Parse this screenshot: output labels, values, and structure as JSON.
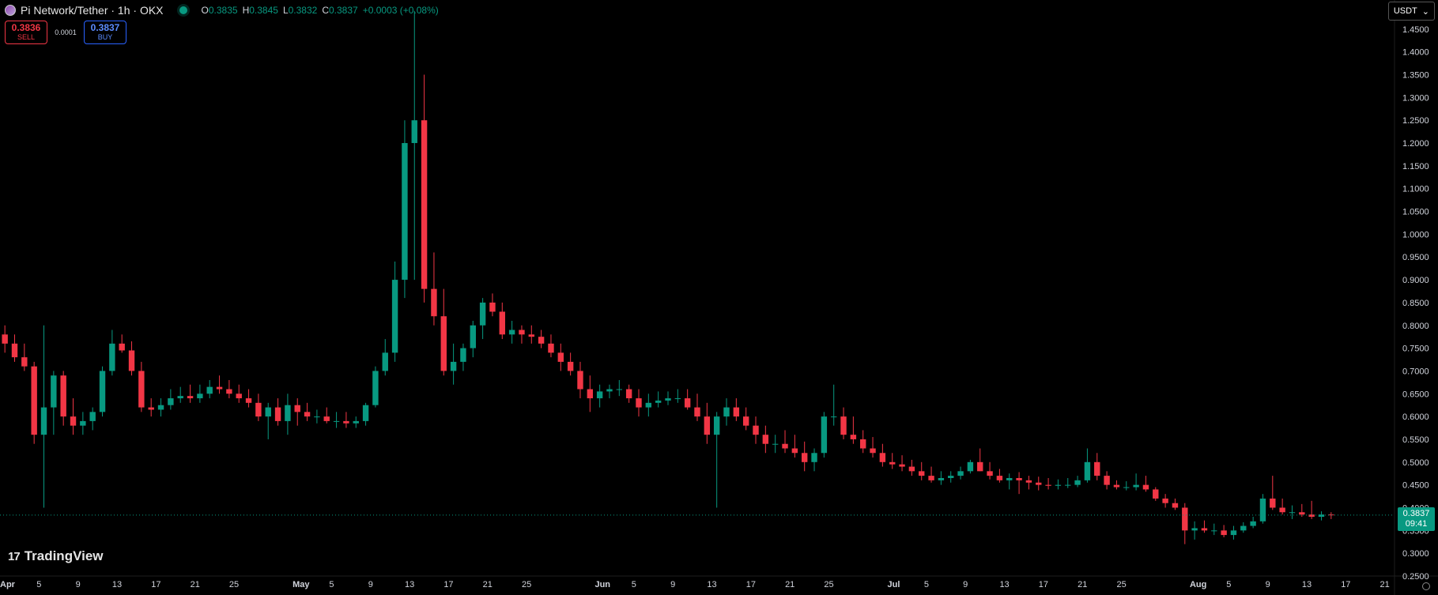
{
  "header": {
    "symbol_title": "Pi Network/Tether · 1h · OKX",
    "ohlc": {
      "o_key": "O",
      "o_val": "0.3835",
      "h_key": "H",
      "h_val": "0.3845",
      "l_key": "L",
      "l_val": "0.3832",
      "c_key": "C",
      "c_val": "0.3837",
      "change": "+0.0003 (+0.08%)"
    }
  },
  "trade": {
    "sell_price": "0.3836",
    "sell_label": "SELL",
    "spread": "0.0001",
    "buy_price": "0.3837",
    "buy_label": "BUY"
  },
  "currency_selector": {
    "label": "USDT",
    "chevron": "⌄"
  },
  "logo": {
    "mark": "17",
    "text": "TradingView"
  },
  "price_label": {
    "price": "0.3837",
    "countdown": "09:41"
  },
  "colors": {
    "up": "#089981",
    "down": "#f23645",
    "background": "#000000",
    "axis_text": "#d1d4dc"
  },
  "chart_data": {
    "type": "line",
    "chart_style": "candlestick",
    "y_scale": "linear",
    "ylim": [
      0.25,
      1.5
    ],
    "y_ticks": [
      "0.2500",
      "0.3000",
      "0.3500",
      "0.4000",
      "0.4500",
      "0.5000",
      "0.5500",
      "0.6000",
      "0.6500",
      "0.7000",
      "0.7500",
      "0.8000",
      "0.8500",
      "0.9000",
      "0.9500",
      "1.0000",
      "1.0500",
      "1.1000",
      "1.1500",
      "1.2000",
      "1.2500",
      "1.3000",
      "1.3500",
      "1.4000",
      "1.4500"
    ],
    "x_axis": {
      "start": "2025-04-01",
      "end": "2025-08-22",
      "ticks": [
        {
          "date": "2025-04-01",
          "label": "Apr"
        },
        {
          "date": "2025-04-05",
          "label": "5"
        },
        {
          "date": "2025-04-09",
          "label": "9"
        },
        {
          "date": "2025-04-13",
          "label": "13"
        },
        {
          "date": "2025-04-17",
          "label": "17"
        },
        {
          "date": "2025-04-21",
          "label": "21"
        },
        {
          "date": "2025-04-25",
          "label": "25"
        },
        {
          "date": "2025-05-01",
          "label": "May"
        },
        {
          "date": "2025-05-05",
          "label": "5"
        },
        {
          "date": "2025-05-09",
          "label": "9"
        },
        {
          "date": "2025-05-13",
          "label": "13"
        },
        {
          "date": "2025-05-17",
          "label": "17"
        },
        {
          "date": "2025-05-21",
          "label": "21"
        },
        {
          "date": "2025-05-25",
          "label": "25"
        },
        {
          "date": "2025-06-01",
          "label": "Jun"
        },
        {
          "date": "2025-06-05",
          "label": "5"
        },
        {
          "date": "2025-06-09",
          "label": "9"
        },
        {
          "date": "2025-06-13",
          "label": "13"
        },
        {
          "date": "2025-06-17",
          "label": "17"
        },
        {
          "date": "2025-06-21",
          "label": "21"
        },
        {
          "date": "2025-06-25",
          "label": "25"
        },
        {
          "date": "2025-07-01",
          "label": "Jul"
        },
        {
          "date": "2025-07-05",
          "label": "5"
        },
        {
          "date": "2025-07-09",
          "label": "9"
        },
        {
          "date": "2025-07-13",
          "label": "13"
        },
        {
          "date": "2025-07-17",
          "label": "17"
        },
        {
          "date": "2025-07-21",
          "label": "21"
        },
        {
          "date": "2025-07-25",
          "label": "25"
        },
        {
          "date": "2025-08-01",
          "label": "Aug"
        },
        {
          "date": "2025-08-05",
          "label": "5"
        },
        {
          "date": "2025-08-09",
          "label": "9"
        },
        {
          "date": "2025-08-13",
          "label": "13"
        },
        {
          "date": "2025-08-17",
          "label": "17"
        },
        {
          "date": "2025-08-21",
          "label": "21"
        }
      ]
    },
    "last_price": 0.3837,
    "series": [
      {
        "x": [
          "2025-04-01",
          "2025-04-02",
          "2025-04-03",
          "2025-04-04",
          "2025-04-05",
          "2025-04-06",
          "2025-04-07",
          "2025-04-08",
          "2025-04-09",
          "2025-04-10",
          "2025-04-11",
          "2025-04-12",
          "2025-04-13",
          "2025-04-14",
          "2025-04-15",
          "2025-04-16",
          "2025-04-17",
          "2025-04-18",
          "2025-04-19",
          "2025-04-20",
          "2025-04-21",
          "2025-04-22",
          "2025-04-23",
          "2025-04-24",
          "2025-04-25",
          "2025-04-26",
          "2025-04-27",
          "2025-04-28",
          "2025-04-29",
          "2025-04-30",
          "2025-05-01",
          "2025-05-02",
          "2025-05-03",
          "2025-05-04",
          "2025-05-05",
          "2025-05-06",
          "2025-05-07",
          "2025-05-08",
          "2025-05-09",
          "2025-05-10",
          "2025-05-11",
          "2025-05-12",
          "2025-05-13",
          "2025-05-14",
          "2025-05-15",
          "2025-05-16",
          "2025-05-17",
          "2025-05-18",
          "2025-05-19",
          "2025-05-20",
          "2025-05-21",
          "2025-05-22",
          "2025-05-23",
          "2025-05-24",
          "2025-05-25",
          "2025-05-26",
          "2025-05-27",
          "2025-05-28",
          "2025-05-29",
          "2025-05-30",
          "2025-05-31",
          "2025-06-01",
          "2025-06-02",
          "2025-06-03",
          "2025-06-04",
          "2025-06-05",
          "2025-06-06",
          "2025-06-07",
          "2025-06-08",
          "2025-06-09",
          "2025-06-10",
          "2025-06-11",
          "2025-06-12",
          "2025-06-13",
          "2025-06-14",
          "2025-06-15",
          "2025-06-16",
          "2025-06-17",
          "2025-06-18",
          "2025-06-19",
          "2025-06-20",
          "2025-06-21",
          "2025-06-22",
          "2025-06-23",
          "2025-06-24",
          "2025-06-25",
          "2025-06-26",
          "2025-06-27",
          "2025-06-28",
          "2025-06-29",
          "2025-06-30",
          "2025-07-01",
          "2025-07-02",
          "2025-07-03",
          "2025-07-04",
          "2025-07-05",
          "2025-07-06",
          "2025-07-07",
          "2025-07-08",
          "2025-07-09",
          "2025-07-10",
          "2025-07-11",
          "2025-07-12",
          "2025-07-13",
          "2025-07-14",
          "2025-07-15",
          "2025-07-16",
          "2025-07-17",
          "2025-07-18",
          "2025-07-19",
          "2025-07-20",
          "2025-07-21",
          "2025-07-22",
          "2025-07-23",
          "2025-07-24",
          "2025-07-25",
          "2025-07-26",
          "2025-07-27",
          "2025-07-28",
          "2025-07-29",
          "2025-07-30",
          "2025-07-31",
          "2025-08-01",
          "2025-08-02",
          "2025-08-03",
          "2025-08-04",
          "2025-08-05",
          "2025-08-06",
          "2025-08-07",
          "2025-08-08",
          "2025-08-09",
          "2025-08-10",
          "2025-08-11",
          "2025-08-12",
          "2025-08-13",
          "2025-08-14",
          "2025-08-15"
        ],
        "o": [
          0.78,
          0.76,
          0.73,
          0.71,
          0.56,
          0.62,
          0.69,
          0.6,
          0.58,
          0.59,
          0.61,
          0.7,
          0.76,
          0.745,
          0.7,
          0.62,
          0.615,
          0.625,
          0.64,
          0.645,
          0.64,
          0.65,
          0.665,
          0.66,
          0.65,
          0.64,
          0.63,
          0.6,
          0.62,
          0.59,
          0.625,
          0.61,
          0.6,
          0.6,
          0.59,
          0.59,
          0.585,
          0.59,
          0.625,
          0.7,
          0.74,
          0.9,
          1.2,
          1.25,
          0.88,
          0.82,
          0.7,
          0.72,
          0.75,
          0.8,
          0.85,
          0.83,
          0.78,
          0.79,
          0.78,
          0.775,
          0.76,
          0.74,
          0.72,
          0.7,
          0.66,
          0.64,
          0.655,
          0.66,
          0.66,
          0.64,
          0.62,
          0.63,
          0.635,
          0.64,
          0.64,
          0.62,
          0.6,
          0.56,
          0.6,
          0.62,
          0.6,
          0.58,
          0.56,
          0.54,
          0.54,
          0.53,
          0.52,
          0.5,
          0.52,
          0.6,
          0.6,
          0.56,
          0.55,
          0.53,
          0.52,
          0.5,
          0.495,
          0.49,
          0.48,
          0.47,
          0.46,
          0.465,
          0.47,
          0.48,
          0.5,
          0.48,
          0.47,
          0.46,
          0.465,
          0.46,
          0.455,
          0.45,
          0.448,
          0.45,
          0.45,
          0.46,
          0.5,
          0.47,
          0.45,
          0.445,
          0.445,
          0.45,
          0.44,
          0.42,
          0.41,
          0.4,
          0.35,
          0.355,
          0.35,
          0.35,
          0.34,
          0.35,
          0.36,
          0.37,
          0.42,
          0.4,
          0.39,
          0.39,
          0.385,
          0.38,
          0.385
        ],
        "h": [
          0.8,
          0.78,
          0.76,
          0.72,
          0.8,
          0.7,
          0.7,
          0.64,
          0.61,
          0.62,
          0.71,
          0.79,
          0.78,
          0.765,
          0.72,
          0.64,
          0.64,
          0.66,
          0.665,
          0.67,
          0.67,
          0.68,
          0.69,
          0.68,
          0.67,
          0.66,
          0.65,
          0.63,
          0.64,
          0.65,
          0.64,
          0.63,
          0.615,
          0.62,
          0.61,
          0.61,
          0.6,
          0.63,
          0.71,
          0.77,
          0.94,
          1.25,
          1.49,
          1.35,
          0.96,
          0.88,
          0.76,
          0.76,
          0.81,
          0.86,
          0.87,
          0.85,
          0.81,
          0.8,
          0.8,
          0.79,
          0.78,
          0.76,
          0.74,
          0.72,
          0.69,
          0.67,
          0.67,
          0.68,
          0.67,
          0.66,
          0.65,
          0.655,
          0.655,
          0.66,
          0.66,
          0.65,
          0.63,
          0.61,
          0.64,
          0.64,
          0.62,
          0.6,
          0.58,
          0.56,
          0.57,
          0.56,
          0.545,
          0.53,
          0.61,
          0.67,
          0.62,
          0.6,
          0.57,
          0.555,
          0.54,
          0.52,
          0.515,
          0.505,
          0.5,
          0.49,
          0.48,
          0.48,
          0.49,
          0.505,
          0.53,
          0.5,
          0.485,
          0.475,
          0.478,
          0.47,
          0.468,
          0.465,
          0.462,
          0.465,
          0.47,
          0.53,
          0.52,
          0.48,
          0.46,
          0.458,
          0.475,
          0.47,
          0.445,
          0.43,
          0.42,
          0.41,
          0.37,
          0.372,
          0.365,
          0.362,
          0.36,
          0.368,
          0.38,
          0.43,
          0.47,
          0.42,
          0.405,
          0.408,
          0.415,
          0.392,
          0.39
        ],
        "l": [
          0.74,
          0.72,
          0.7,
          0.54,
          0.4,
          0.56,
          0.58,
          0.56,
          0.56,
          0.57,
          0.6,
          0.69,
          0.74,
          0.69,
          0.61,
          0.6,
          0.6,
          0.615,
          0.63,
          0.63,
          0.63,
          0.64,
          0.65,
          0.64,
          0.63,
          0.62,
          0.59,
          0.55,
          0.58,
          0.56,
          0.58,
          0.59,
          0.585,
          0.585,
          0.575,
          0.575,
          0.575,
          0.58,
          0.62,
          0.69,
          0.72,
          0.86,
          0.9,
          0.85,
          0.8,
          0.69,
          0.67,
          0.7,
          0.73,
          0.77,
          0.82,
          0.77,
          0.76,
          0.76,
          0.76,
          0.75,
          0.73,
          0.7,
          0.69,
          0.64,
          0.61,
          0.62,
          0.64,
          0.645,
          0.63,
          0.6,
          0.6,
          0.62,
          0.625,
          0.63,
          0.615,
          0.59,
          0.54,
          0.4,
          0.58,
          0.59,
          0.57,
          0.54,
          0.52,
          0.52,
          0.52,
          0.51,
          0.48,
          0.48,
          0.51,
          0.58,
          0.55,
          0.54,
          0.52,
          0.51,
          0.49,
          0.485,
          0.48,
          0.47,
          0.46,
          0.455,
          0.45,
          0.455,
          0.462,
          0.475,
          0.48,
          0.462,
          0.455,
          0.44,
          0.43,
          0.44,
          0.438,
          0.44,
          0.44,
          0.443,
          0.445,
          0.455,
          0.46,
          0.44,
          0.44,
          0.438,
          0.438,
          0.435,
          0.415,
          0.4,
          0.395,
          0.32,
          0.33,
          0.345,
          0.34,
          0.335,
          0.33,
          0.345,
          0.355,
          0.365,
          0.395,
          0.385,
          0.375,
          0.38,
          0.375,
          0.372,
          0.375
        ],
        "c": [
          0.76,
          0.73,
          0.71,
          0.56,
          0.62,
          0.69,
          0.6,
          0.58,
          0.59,
          0.61,
          0.7,
          0.76,
          0.745,
          0.7,
          0.62,
          0.615,
          0.625,
          0.64,
          0.645,
          0.64,
          0.65,
          0.665,
          0.66,
          0.65,
          0.64,
          0.63,
          0.6,
          0.62,
          0.59,
          0.625,
          0.61,
          0.6,
          0.6,
          0.59,
          0.59,
          0.585,
          0.59,
          0.625,
          0.7,
          0.74,
          0.9,
          1.2,
          1.25,
          0.88,
          0.82,
          0.7,
          0.72,
          0.75,
          0.8,
          0.85,
          0.83,
          0.78,
          0.79,
          0.78,
          0.775,
          0.76,
          0.74,
          0.72,
          0.7,
          0.66,
          0.64,
          0.655,
          0.66,
          0.66,
          0.64,
          0.62,
          0.63,
          0.635,
          0.64,
          0.64,
          0.62,
          0.6,
          0.56,
          0.6,
          0.62,
          0.6,
          0.58,
          0.56,
          0.54,
          0.54,
          0.53,
          0.52,
          0.5,
          0.52,
          0.6,
          0.6,
          0.56,
          0.55,
          0.53,
          0.52,
          0.5,
          0.495,
          0.49,
          0.48,
          0.47,
          0.46,
          0.465,
          0.47,
          0.48,
          0.5,
          0.48,
          0.47,
          0.46,
          0.465,
          0.46,
          0.455,
          0.45,
          0.448,
          0.45,
          0.45,
          0.46,
          0.5,
          0.47,
          0.45,
          0.445,
          0.445,
          0.45,
          0.44,
          0.42,
          0.41,
          0.4,
          0.35,
          0.355,
          0.35,
          0.35,
          0.34,
          0.35,
          0.36,
          0.37,
          0.42,
          0.4,
          0.39,
          0.39,
          0.385,
          0.38,
          0.385,
          0.3837
        ]
      }
    ]
  }
}
